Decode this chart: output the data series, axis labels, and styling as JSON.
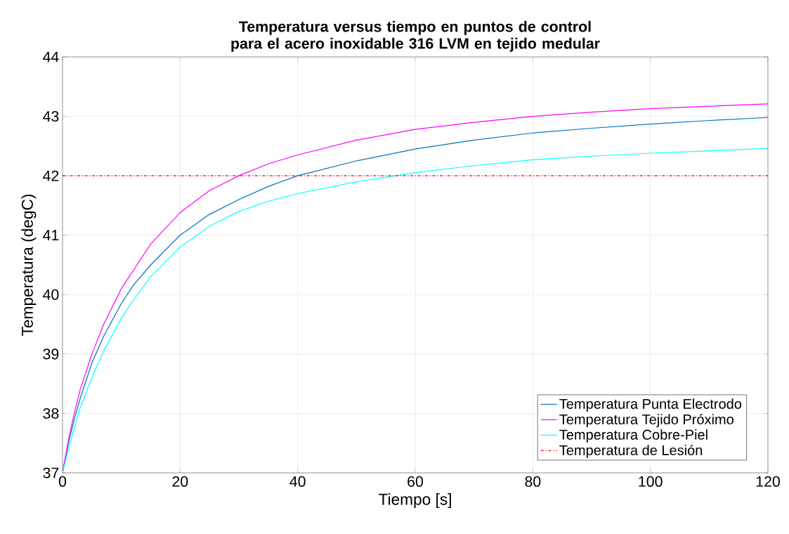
{
  "chart_data": {
    "type": "line",
    "title": "Temperatura versus tiempo en puntos de control para el acero inoxidable 316 LVM en tejido medular",
    "xlabel": "Tiempo [s]",
    "ylabel": "Temperatura (degC)",
    "x": [
      0,
      1,
      2,
      3,
      5,
      7,
      10,
      12,
      15,
      20,
      25,
      30,
      35,
      40,
      50,
      60,
      70,
      80,
      90,
      100,
      110,
      120
    ],
    "series": [
      {
        "name": "Temperatura Punta Electrodo",
        "color": "#0072bd",
        "values": [
          37,
          37.5,
          37.9,
          38.25,
          38.85,
          39.3,
          39.85,
          40.15,
          40.5,
          41.0,
          41.35,
          41.6,
          41.82,
          42.0,
          42.25,
          42.45,
          42.6,
          42.72,
          42.8,
          42.87,
          42.93,
          42.98
        ]
      },
      {
        "name": "Temperatura Tejido Próximo",
        "color": "#ff00ff",
        "values": [
          37,
          37.55,
          38.0,
          38.4,
          39.0,
          39.5,
          40.1,
          40.4,
          40.85,
          41.38,
          41.75,
          42.0,
          42.2,
          42.35,
          42.6,
          42.78,
          42.9,
          43.0,
          43.07,
          43.13,
          43.17,
          43.21
        ]
      },
      {
        "name": "Temperatura Cobre-Piel",
        "color": "#00ffff",
        "values": [
          37,
          37.4,
          37.75,
          38.1,
          38.6,
          39.05,
          39.6,
          39.9,
          40.3,
          40.8,
          41.15,
          41.4,
          41.57,
          41.7,
          41.9,
          42.05,
          42.17,
          42.27,
          42.33,
          42.38,
          42.42,
          42.46
        ]
      }
    ],
    "ref_lines": [
      {
        "axis": "y",
        "value": 42,
        "label": "Temperatura de Lesión",
        "color": "#ff0000",
        "line_style": "dashdot"
      }
    ],
    "xlim": [
      0,
      120
    ],
    "ylim": [
      37,
      44
    ],
    "xticks": [
      0,
      20,
      40,
      60,
      80,
      100,
      120
    ],
    "yticks": [
      37,
      38,
      39,
      40,
      41,
      42,
      43,
      44
    ],
    "grid": true,
    "legend": "bottom right",
    "line_style": "solid",
    "marker": "none"
  }
}
